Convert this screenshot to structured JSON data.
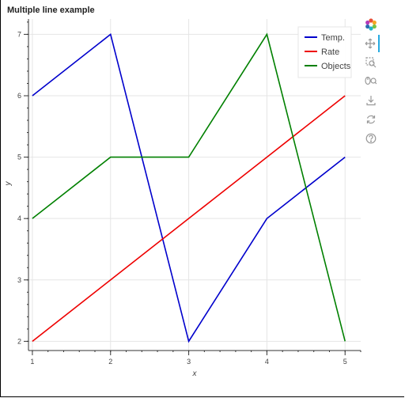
{
  "chart_data": {
    "type": "line",
    "title": "Multiple line example",
    "xlabel": "x",
    "ylabel": "y",
    "x": [
      1,
      2,
      3,
      4,
      5
    ],
    "xlim": [
      0.95,
      5.2
    ],
    "ylim": [
      1.85,
      7.25
    ],
    "xticks": [
      "1",
      "2",
      "3",
      "4",
      "5"
    ],
    "yticks": [
      "2",
      "3",
      "4",
      "5",
      "6",
      "7"
    ],
    "grid": true,
    "legend_position": "top-right",
    "series": [
      {
        "name": "Temp.",
        "color": "#0000cc",
        "values": [
          6,
          7,
          2,
          4,
          5
        ]
      },
      {
        "name": "Rate",
        "color": "#ee0000",
        "values": [
          2,
          3,
          4,
          5,
          6
        ]
      },
      {
        "name": "Objects",
        "color": "#008000",
        "values": [
          4,
          5,
          5,
          7,
          2
        ]
      }
    ]
  },
  "toolbar": {
    "tools": [
      "bokeh-logo-icon",
      "pan-icon",
      "box-zoom-icon",
      "wheel-zoom-icon",
      "save-icon",
      "reset-icon",
      "help-icon"
    ]
  }
}
